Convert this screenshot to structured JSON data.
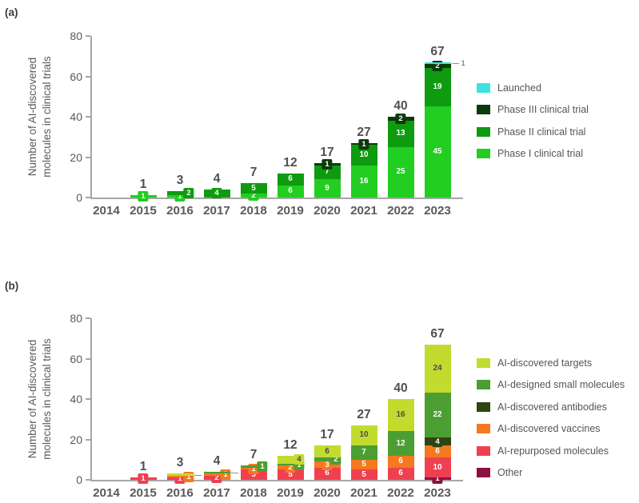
{
  "figure": {
    "panel_a_tag": "(a)",
    "panel_b_tag": "(b)",
    "ylabel_line1": "Number of AI-discovered",
    "ylabel_line2": "molecules in clinical trials"
  },
  "chart_data": [
    {
      "type": "bar",
      "stacked": true,
      "panel": "(a)",
      "ylabel": "Number of AI-discovered molecules in clinical trials",
      "categories": [
        "2014",
        "2015",
        "2016",
        "2017",
        "2018",
        "2019",
        "2020",
        "2021",
        "2022",
        "2023"
      ],
      "ylim": [
        0,
        80
      ],
      "yticks": [
        0,
        20,
        40,
        60,
        80
      ],
      "grid": false,
      "legend_position": "right",
      "series": [
        {
          "name": "Phase I clinical trial",
          "color": "#21CE21",
          "values": [
            0,
            1,
            1,
            0,
            2,
            6,
            9,
            16,
            25,
            45
          ]
        },
        {
          "name": "Phase II clinical trial",
          "color": "#0F9B0F",
          "values": [
            0,
            0,
            2,
            4,
            5,
            6,
            7,
            10,
            13,
            19
          ]
        },
        {
          "name": "Phase III clinical trial",
          "color": "#0B3B0B",
          "values": [
            0,
            0,
            0,
            0,
            0,
            0,
            1,
            1,
            2,
            2
          ]
        },
        {
          "name": "Launched",
          "color": "#3BE3DE",
          "values": [
            0,
            0,
            0,
            0,
            0,
            0,
            0,
            0,
            0,
            1
          ]
        }
      ],
      "totals": [
        0,
        1,
        3,
        4,
        7,
        12,
        17,
        27,
        40,
        67
      ],
      "legend": [
        "Launched",
        "Phase III clinical trial",
        "Phase II clinical trial",
        "Phase I clinical trial"
      ],
      "callouts": [
        {
          "category": "2023",
          "series": "Launched",
          "value": 1
        }
      ]
    },
    {
      "type": "bar",
      "stacked": true,
      "panel": "(b)",
      "ylabel": "Number of AI-discovered molecules in clinical trials",
      "categories": [
        "2014",
        "2015",
        "2016",
        "2017",
        "2018",
        "2019",
        "2020",
        "2021",
        "2022",
        "2023"
      ],
      "ylim": [
        0,
        80
      ],
      "yticks": [
        0,
        20,
        40,
        60,
        80
      ],
      "grid": false,
      "legend_position": "right",
      "series": [
        {
          "name": "Other",
          "color": "#8E1043",
          "values": [
            0,
            0,
            0,
            0,
            0,
            0,
            0,
            0,
            0,
            1
          ]
        },
        {
          "name": "AI-repurposed molecules",
          "color": "#EF4050",
          "values": [
            0,
            1,
            1,
            2,
            5,
            5,
            6,
            5,
            6,
            10
          ]
        },
        {
          "name": "AI-discovered vaccines",
          "color": "#F4791F",
          "values": [
            0,
            0,
            1,
            1,
            1,
            2,
            3,
            5,
            6,
            6
          ]
        },
        {
          "name": "AI-discovered antibodies",
          "color": "#2E4511",
          "values": [
            0,
            0,
            0,
            0,
            0,
            0,
            0,
            0,
            0,
            4
          ]
        },
        {
          "name": "AI-designed small molecules",
          "color": "#4C9E33",
          "values": [
            0,
            0,
            0,
            1,
            1,
            1,
            2,
            7,
            12,
            22
          ]
        },
        {
          "name": "AI-discovered targets",
          "color": "#C3DB2F",
          "values": [
            0,
            0,
            1,
            0,
            0,
            4,
            6,
            10,
            16,
            24
          ]
        }
      ],
      "totals": [
        0,
        1,
        3,
        4,
        7,
        12,
        17,
        27,
        40,
        67
      ],
      "legend": [
        "AI-discovered targets",
        "AI-designed small molecules",
        "AI-discovered antibodies",
        "AI-discovered vaccines",
        "AI-repurposed molecules",
        "Other"
      ],
      "callouts": [
        {
          "category": "2016",
          "series": "AI-discovered targets",
          "value": 1
        },
        {
          "category": "2017",
          "series": "AI-designed small molecules",
          "value": 1
        }
      ]
    }
  ],
  "colors": {
    "axis": "#A6A6A6",
    "tick_text": "#5A5A5A",
    "total_text": "#4F4F4F",
    "callout_text": "#5A5A5A",
    "light_segment_text": "#4A4A4A"
  }
}
